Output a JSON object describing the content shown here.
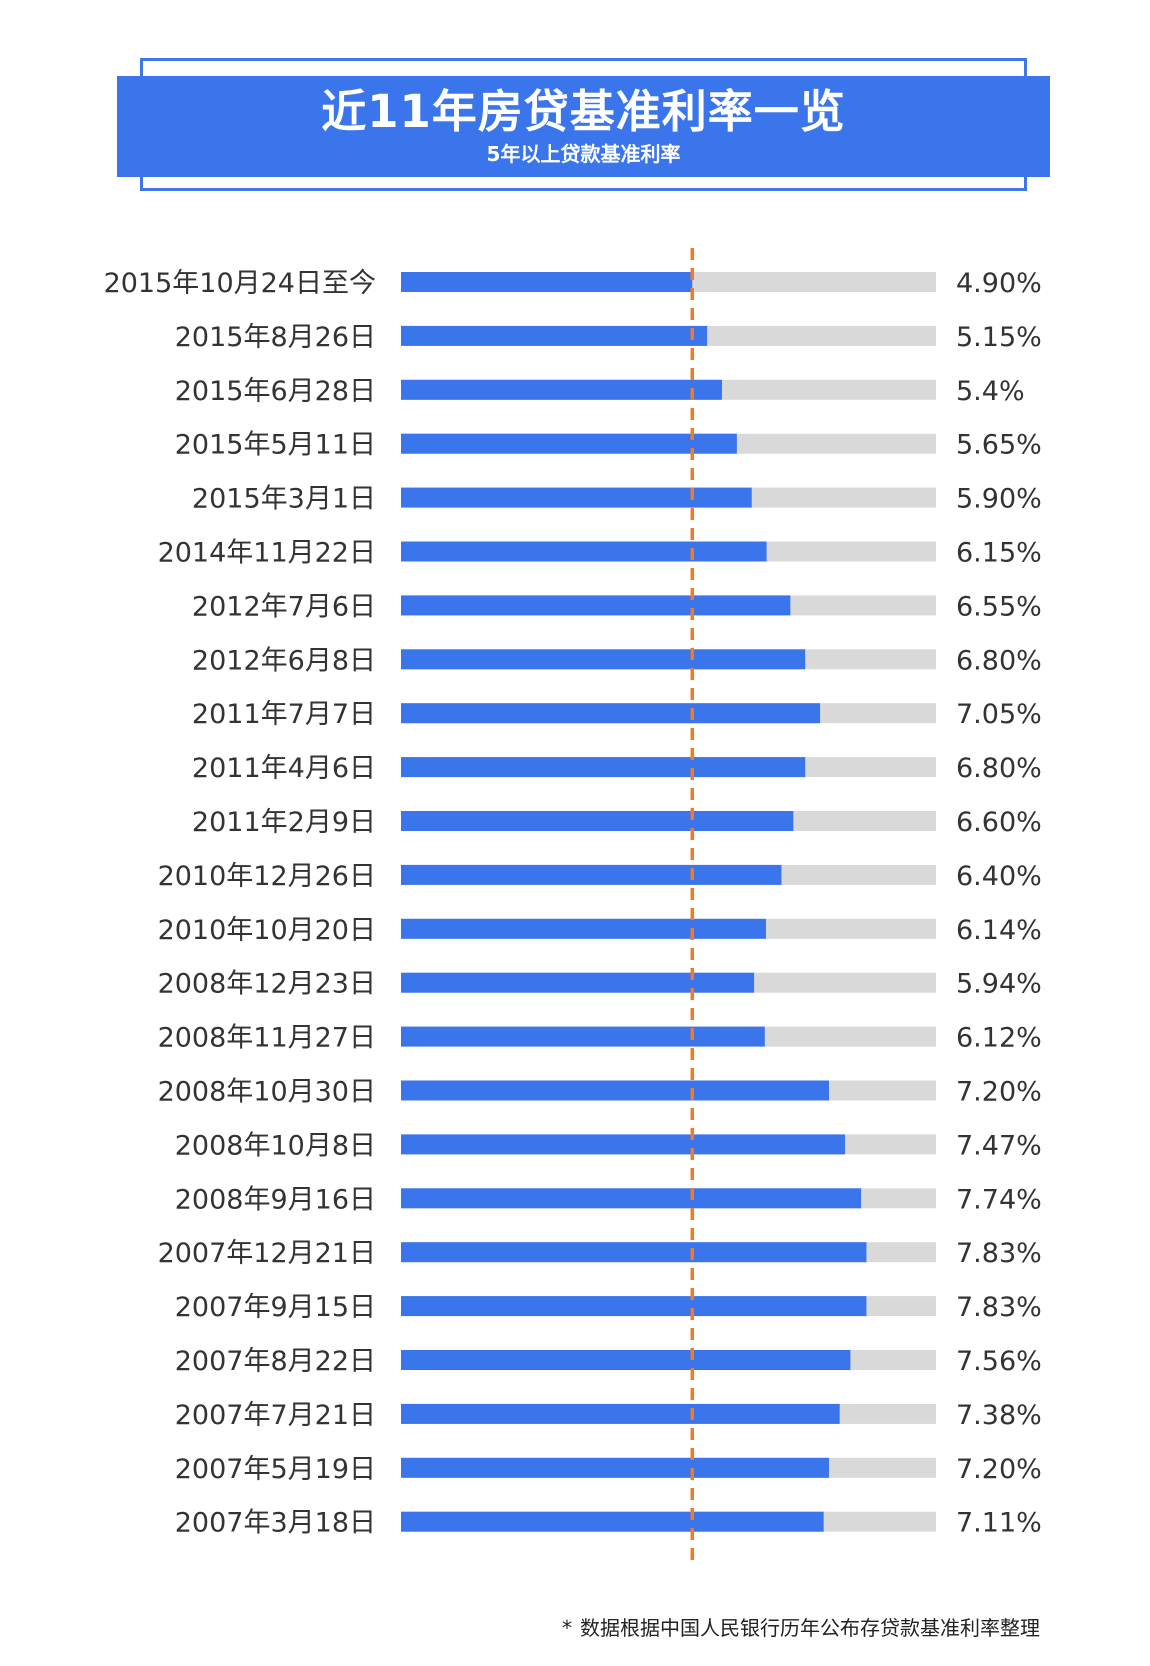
{
  "header": {
    "title": "近11年房贷基准利率一览",
    "subtitle": "5年以上贷款基准利率"
  },
  "footnote": {
    "marker": "*",
    "text": "数据根据中国人民银行历年公布存贷款基准利率整理"
  },
  "colors": {
    "bar": "#3a75ec",
    "track": "#d9d9d9",
    "reference_line": "#ee7a2c",
    "label_text": "#333333"
  },
  "chart_data": {
    "type": "bar",
    "orientation": "horizontal",
    "title": "近11年房贷基准利率一览",
    "subtitle": "5年以上贷款基准利率",
    "xlim": [
      0,
      9
    ],
    "reference_line": 4.9,
    "categories": [
      "2015年10月24日至今",
      "2015年8月26日",
      "2015年6月28日",
      "2015年5月11日",
      "2015年3月1日",
      "2014年11月22日",
      "2012年7月6日",
      "2012年6月8日",
      "2011年7月7日",
      "2011年4月6日",
      "2011年2月9日",
      "2010年12月26日",
      "2010年10月20日",
      "2008年12月23日",
      "2008年11月27日",
      "2008年10月30日",
      "2008年10月8日",
      "2008年9月16日",
      "2007年12月21日",
      "2007年9月15日",
      "2007年8月22日",
      "2007年7月21日",
      "2007年5月19日",
      "2007年3月18日"
    ],
    "values": [
      4.9,
      5.15,
      5.4,
      5.65,
      5.9,
      6.15,
      6.55,
      6.8,
      7.05,
      6.8,
      6.6,
      6.4,
      6.14,
      5.94,
      6.12,
      7.2,
      7.47,
      7.74,
      7.83,
      7.83,
      7.56,
      7.38,
      7.2,
      7.11
    ],
    "value_labels": [
      "4.90%",
      "5.15%",
      "5.4%",
      "5.65%",
      "5.90%",
      "6.15%",
      "6.55%",
      "6.80%",
      "7.05%",
      "6.80%",
      "6.60%",
      "6.40%",
      "6.14%",
      "5.94%",
      "6.12%",
      "7.20%",
      "7.47%",
      "7.74%",
      "7.83%",
      "7.83%",
      "7.56%",
      "7.38%",
      "7.20%",
      "7.11%"
    ]
  }
}
